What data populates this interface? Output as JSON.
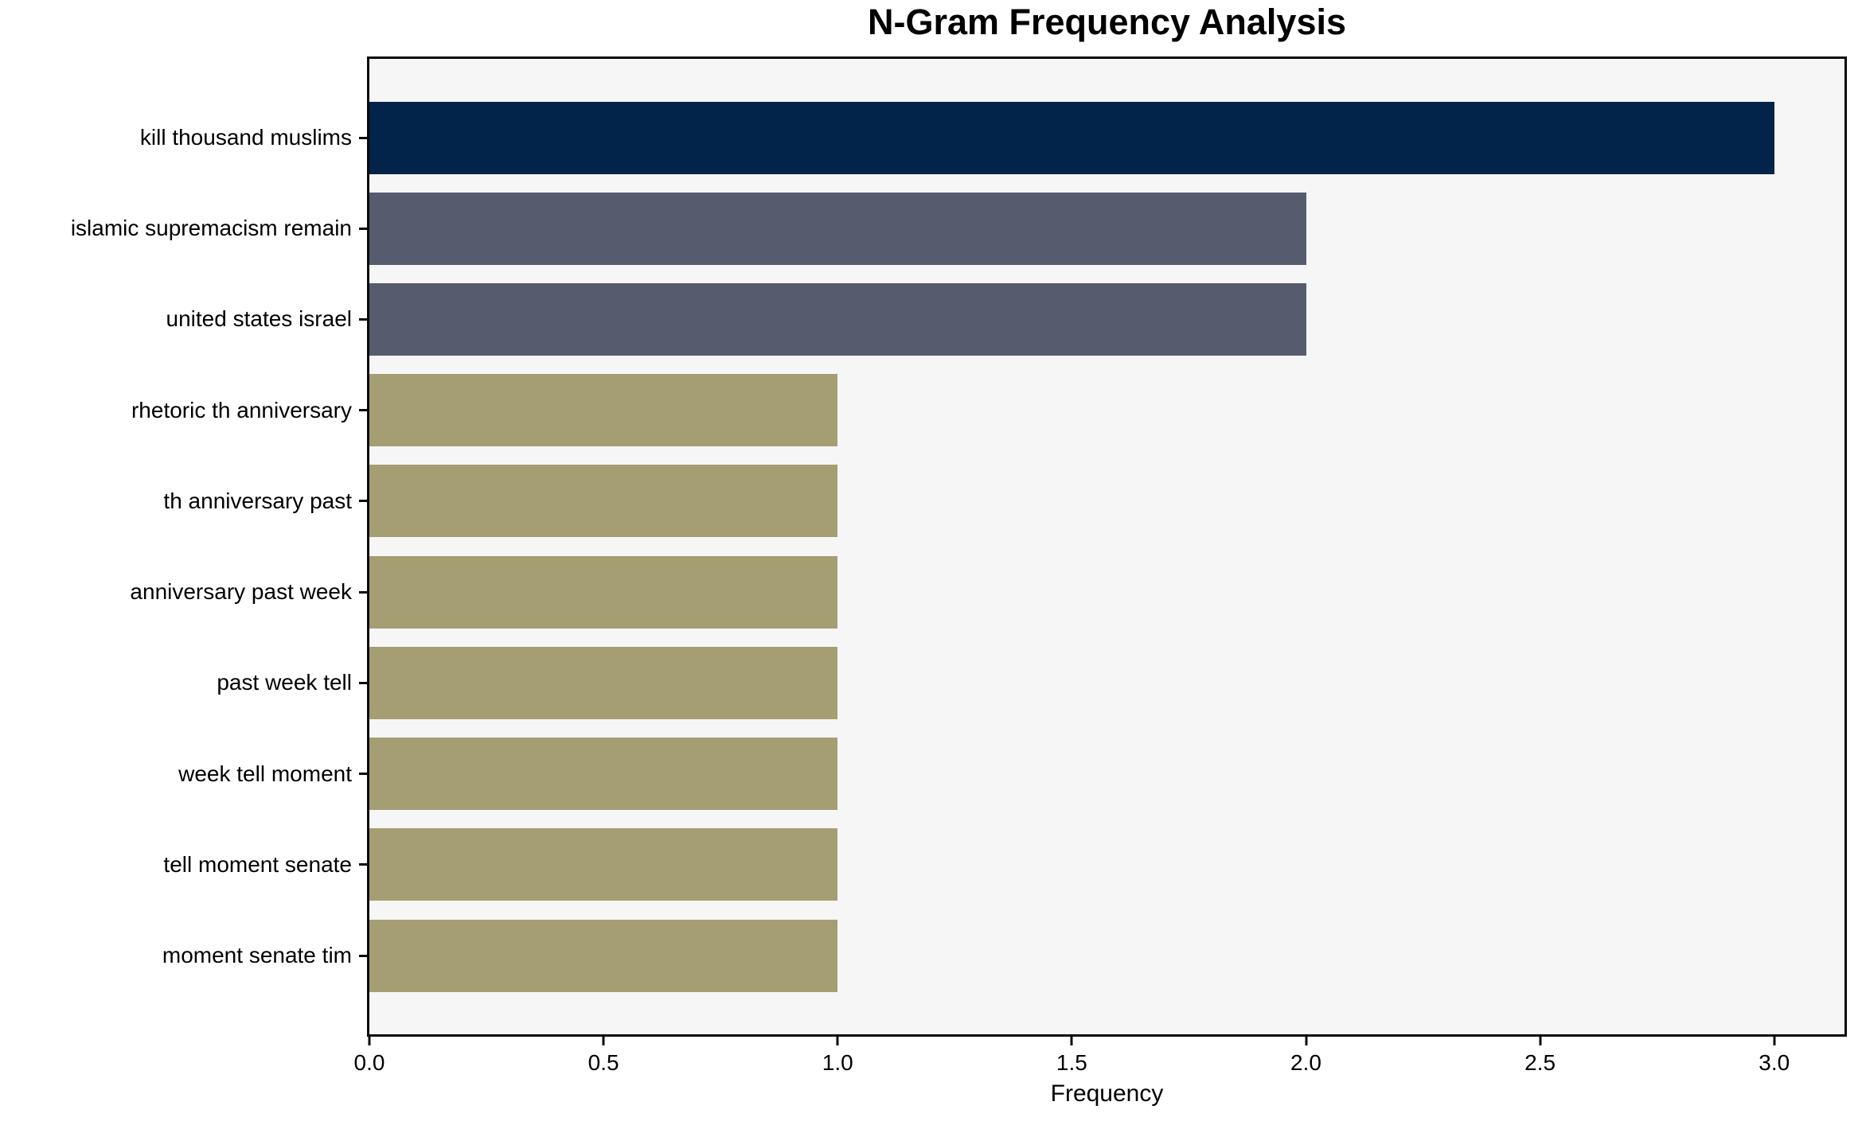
{
  "chart_data": {
    "type": "bar",
    "orientation": "horizontal",
    "title": "N-Gram Frequency Analysis",
    "xlabel": "Frequency",
    "ylabel": "",
    "categories": [
      "kill thousand muslims",
      "islamic supremacism remain",
      "united states israel",
      "rhetoric th anniversary",
      "th anniversary past",
      "anniversary past week",
      "past week tell",
      "week tell moment",
      "tell moment senate",
      "moment senate tim"
    ],
    "values": [
      3,
      2,
      2,
      1,
      1,
      1,
      1,
      1,
      1,
      1
    ],
    "bar_colors": [
      "#02234a",
      "#565c6d",
      "#565c6d",
      "#a49e72",
      "#a49e72",
      "#a49e72",
      "#a49e72",
      "#a49e72",
      "#a49e72",
      "#a49e72"
    ],
    "xlim": [
      0,
      3.15
    ],
    "xticks": [
      "0.0",
      "0.5",
      "1.0",
      "1.5",
      "2.0",
      "2.5",
      "3.0"
    ],
    "xtick_values": [
      0,
      0.5,
      1.0,
      1.5,
      2.0,
      2.5,
      3.0
    ],
    "grid": false,
    "legend": null,
    "colors": {
      "plot_background": "#f6f6f7",
      "figure_background": "#ffffff",
      "spine": "#0a0a0a",
      "text": "#000000"
    }
  }
}
